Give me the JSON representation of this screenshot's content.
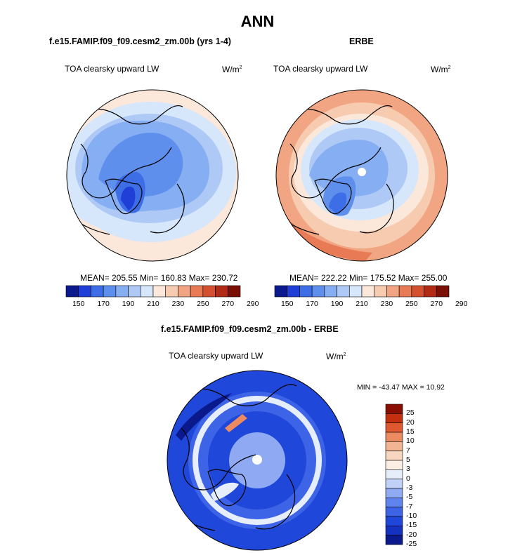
{
  "main_title": "ANN",
  "panels": [
    {
      "case_title": "f.e15.FAMIP.f09_f09.cesm2_zm.00b (yrs 1-4)",
      "variable": "TOA clearsky upward LW",
      "units": "W/m",
      "units_exp": "2",
      "stats": "MEAN= 205.55  Min= 160.83  Max= 230.72"
    },
    {
      "case_title": "ERBE",
      "variable": "TOA clearsky upward LW",
      "units": "W/m",
      "units_exp": "2",
      "stats": "MEAN= 222.22  Min= 175.52  Max= 255.00"
    },
    {
      "case_title": "f.e15.FAMIP.f09_f09.cesm2_zm.00b - ERBE",
      "variable": "TOA clearsky upward LW",
      "units": "W/m",
      "units_exp": "2",
      "stats": "MIN = -43.47 MAX =  10.92"
    }
  ],
  "colors": {
    "abs_scale": [
      "#0a1a8c",
      "#1f3fd6",
      "#3d6ee6",
      "#5f8fec",
      "#86aef2",
      "#aec9f6",
      "#d6e6fb",
      "#fbe8da",
      "#f7cbb0",
      "#f1a583",
      "#e87a55",
      "#d4512f",
      "#b02a16",
      "#7a0f06"
    ],
    "diff_scale": [
      "#0a1a8c",
      "#1531bf",
      "#1f47d9",
      "#3d63e6",
      "#5f84ee",
      "#8fa9f3",
      "#c0d2f8",
      "#e6eefc",
      "#fbeee2",
      "#f7d6bf",
      "#f2b593",
      "#ec8a62",
      "#e0582f",
      "#c2300f",
      "#8a0e02"
    ],
    "coast": "#000000"
  },
  "chart_data": [
    {
      "type": "heatmap",
      "title": "f.e15.FAMIP.f09_f09.cesm2_zm.00b (yrs 1-4)",
      "subtitle": "TOA clearsky upward LW",
      "projection": "north polar stereographic",
      "units": "W/m2",
      "mean": 205.55,
      "min": 160.83,
      "max": 230.72,
      "colorbar_levels": [
        150,
        160,
        170,
        180,
        190,
        200,
        210,
        220,
        230,
        240,
        250,
        260,
        270,
        280,
        290
      ],
      "colorbar_ticks": [
        "150",
        "170",
        "190",
        "210",
        "230",
        "250",
        "270",
        "290"
      ]
    },
    {
      "type": "heatmap",
      "title": "ERBE",
      "subtitle": "TOA clearsky upward LW",
      "projection": "north polar stereographic",
      "units": "W/m2",
      "mean": 222.22,
      "min": 175.52,
      "max": 255.0,
      "colorbar_levels": [
        150,
        160,
        170,
        180,
        190,
        200,
        210,
        220,
        230,
        240,
        250,
        260,
        270,
        280,
        290
      ],
      "colorbar_ticks": [
        "150",
        "170",
        "190",
        "210",
        "230",
        "250",
        "270",
        "290"
      ]
    },
    {
      "type": "heatmap",
      "title": "f.e15.FAMIP.f09_f09.cesm2_zm.00b - ERBE",
      "subtitle": "TOA clearsky upward LW",
      "projection": "north polar stereographic",
      "units": "W/m2",
      "min": -43.47,
      "max": 10.92,
      "colorbar_ticks": [
        "25",
        "20",
        "15",
        "10",
        "7",
        "5",
        "3",
        "0",
        "-3",
        "-5",
        "-7",
        "-10",
        "-15",
        "-20",
        "-25"
      ]
    }
  ]
}
